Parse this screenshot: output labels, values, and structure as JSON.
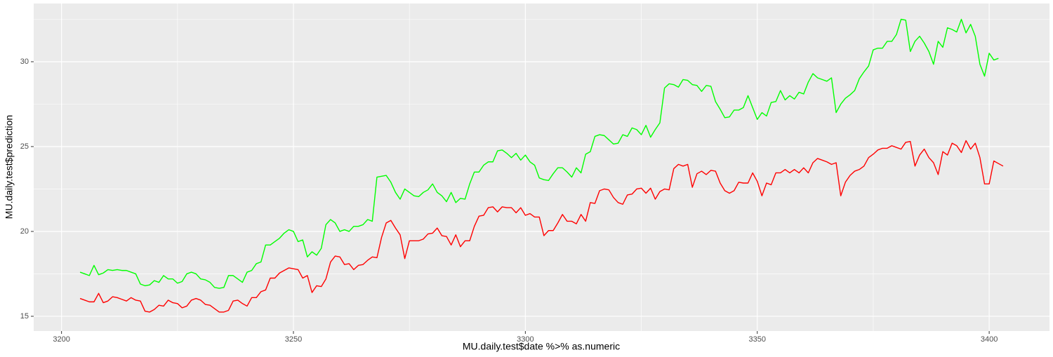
{
  "chart_data": {
    "type": "line",
    "x_label": "MU.daily.test$date %>% as.numeric",
    "y_label": "MU.daily.test$prediction",
    "x": [
      3204,
      3205,
      3206,
      3207,
      3208,
      3209,
      3210,
      3211,
      3212,
      3213,
      3214,
      3215,
      3216,
      3217,
      3218,
      3219,
      3220,
      3221,
      3222,
      3223,
      3224,
      3225,
      3226,
      3227,
      3228,
      3229,
      3230,
      3231,
      3232,
      3233,
      3234,
      3235,
      3236,
      3237,
      3238,
      3239,
      3240,
      3241,
      3242,
      3243,
      3244,
      3245,
      3246,
      3247,
      3248,
      3249,
      3250,
      3251,
      3252,
      3253,
      3254,
      3255,
      3256,
      3257,
      3258,
      3259,
      3260,
      3261,
      3262,
      3263,
      3264,
      3265,
      3266,
      3267,
      3268,
      3269,
      3270,
      3271,
      3272,
      3273,
      3274,
      3275,
      3276,
      3277,
      3278,
      3279,
      3280,
      3281,
      3282,
      3283,
      3284,
      3285,
      3286,
      3287,
      3288,
      3289,
      3290,
      3291,
      3292,
      3293,
      3294,
      3295,
      3296,
      3297,
      3298,
      3299,
      3300,
      3301,
      3302,
      3303,
      3304,
      3305,
      3306,
      3307,
      3308,
      3309,
      3310,
      3311,
      3312,
      3313,
      3314,
      3315,
      3316,
      3317,
      3318,
      3319,
      3320,
      3321,
      3322,
      3323,
      3324,
      3325,
      3326,
      3327,
      3328,
      3329,
      3330,
      3331,
      3332,
      3333,
      3334,
      3335,
      3336,
      3337,
      3338,
      3339,
      3340,
      3341,
      3342,
      3343,
      3344,
      3345,
      3346,
      3347,
      3348,
      3349,
      3350,
      3351,
      3352,
      3353,
      3354,
      3355,
      3356,
      3357,
      3358,
      3359,
      3360,
      3361,
      3362,
      3363,
      3364,
      3365,
      3366,
      3367,
      3368,
      3369,
      3370,
      3371,
      3372,
      3373,
      3374,
      3375,
      3376,
      3377,
      3378,
      3379,
      3380,
      3381,
      3382,
      3383,
      3384,
      3385,
      3386,
      3387,
      3388,
      3389,
      3390,
      3391,
      3392,
      3393,
      3394,
      3395,
      3396,
      3397,
      3398,
      3399,
      3400,
      3401,
      3402,
      3403
    ],
    "series": [
      {
        "color": "#00ff00",
        "values": [
          17.6,
          17.5,
          17.4,
          18.0,
          17.45,
          17.55,
          17.75,
          17.7,
          17.75,
          17.7,
          17.7,
          17.6,
          17.5,
          16.9,
          16.8,
          16.85,
          17.1,
          17.0,
          17.4,
          17.2,
          17.2,
          16.95,
          17.05,
          17.5,
          17.6,
          17.5,
          17.2,
          17.15,
          17.0,
          16.7,
          16.65,
          16.7,
          17.4,
          17.4,
          17.2,
          17.0,
          17.6,
          17.7,
          18.1,
          18.2,
          19.2,
          19.2,
          19.4,
          19.6,
          19.9,
          20.1,
          20.0,
          19.4,
          19.5,
          18.5,
          18.8,
          18.6,
          19.0,
          20.4,
          20.7,
          20.5,
          20.0,
          20.1,
          20.0,
          20.3,
          20.3,
          20.4,
          20.7,
          20.6,
          23.2,
          23.25,
          23.3,
          22.9,
          22.3,
          21.9,
          22.5,
          22.3,
          22.1,
          22.05,
          22.3,
          22.45,
          22.8,
          22.3,
          22.1,
          21.75,
          22.3,
          21.7,
          21.95,
          21.9,
          22.8,
          23.5,
          23.5,
          23.9,
          24.1,
          24.1,
          24.75,
          24.8,
          24.6,
          24.35,
          24.6,
          24.2,
          24.5,
          24.1,
          23.9,
          23.15,
          23.05,
          23.0,
          23.4,
          23.75,
          23.75,
          23.5,
          23.2,
          23.75,
          23.45,
          24.55,
          24.7,
          25.6,
          25.7,
          25.65,
          25.4,
          25.15,
          25.2,
          25.7,
          25.6,
          26.1,
          26.0,
          25.7,
          26.25,
          25.55,
          26.0,
          26.4,
          28.45,
          28.7,
          28.65,
          28.5,
          28.95,
          28.9,
          28.65,
          28.6,
          28.25,
          28.6,
          28.55,
          27.65,
          27.2,
          26.7,
          26.75,
          27.15,
          27.15,
          27.3,
          28.0,
          27.3,
          26.6,
          27.0,
          26.8,
          27.6,
          27.65,
          28.3,
          27.75,
          28.0,
          27.8,
          28.2,
          28.1,
          28.8,
          29.3,
          29.05,
          28.95,
          28.85,
          29.05,
          27.0,
          27.5,
          27.85,
          28.05,
          28.3,
          29.0,
          29.4,
          29.75,
          30.7,
          30.8,
          30.8,
          31.2,
          31.2,
          31.6,
          32.5,
          32.45,
          30.6,
          31.2,
          31.5,
          31.1,
          30.6,
          29.85,
          31.2,
          30.85,
          32.0,
          31.9,
          31.75,
          32.5,
          31.7,
          32.2,
          31.5,
          29.85,
          29.15,
          30.5,
          30.1,
          30.2,
          null
        ]
      },
      {
        "color": "#ff0000",
        "values": [
          16.05,
          15.95,
          15.85,
          15.85,
          16.35,
          15.8,
          15.9,
          16.15,
          16.1,
          16.0,
          15.9,
          16.1,
          15.95,
          15.9,
          15.3,
          15.25,
          15.4,
          15.65,
          15.6,
          15.95,
          15.8,
          15.75,
          15.5,
          15.6,
          15.95,
          16.05,
          15.95,
          15.7,
          15.65,
          15.45,
          15.25,
          15.25,
          15.35,
          15.9,
          15.95,
          15.75,
          15.6,
          16.1,
          16.1,
          16.45,
          16.55,
          17.25,
          17.25,
          17.55,
          17.7,
          17.85,
          17.8,
          17.75,
          17.25,
          17.4,
          16.4,
          16.8,
          16.75,
          17.2,
          18.2,
          18.55,
          18.5,
          18.05,
          18.1,
          17.75,
          18.0,
          18.05,
          18.3,
          18.5,
          18.45,
          19.65,
          20.5,
          20.65,
          20.2,
          19.8,
          18.4,
          19.45,
          19.45,
          19.45,
          19.55,
          19.85,
          19.9,
          20.2,
          19.75,
          19.7,
          19.2,
          19.8,
          19.1,
          19.45,
          19.45,
          20.3,
          20.9,
          20.95,
          21.4,
          21.45,
          21.15,
          21.45,
          21.4,
          21.4,
          21.1,
          21.4,
          20.95,
          21.05,
          20.85,
          20.85,
          19.75,
          20.05,
          20.05,
          20.5,
          21.0,
          20.6,
          20.6,
          20.45,
          21.0,
          20.6,
          21.7,
          21.65,
          22.4,
          22.5,
          22.45,
          22.0,
          21.7,
          21.6,
          22.15,
          22.2,
          22.5,
          22.55,
          22.25,
          22.55,
          21.9,
          22.35,
          22.5,
          22.45,
          23.7,
          23.95,
          23.85,
          23.95,
          22.6,
          23.4,
          23.55,
          23.35,
          23.6,
          23.55,
          22.85,
          22.4,
          22.25,
          22.4,
          22.9,
          22.85,
          22.85,
          23.45,
          22.95,
          22.1,
          22.85,
          22.75,
          23.45,
          23.45,
          23.65,
          23.45,
          23.65,
          23.45,
          23.75,
          23.45,
          24.05,
          24.3,
          24.2,
          24.1,
          23.95,
          24.05,
          22.1,
          22.9,
          23.3,
          23.55,
          23.65,
          23.85,
          24.35,
          24.55,
          24.8,
          24.9,
          24.9,
          25.05,
          24.95,
          24.85,
          25.25,
          25.3,
          23.85,
          24.5,
          24.85,
          24.35,
          24.05,
          23.35,
          24.7,
          24.5,
          25.2,
          25.05,
          24.65,
          25.35,
          24.85,
          25.2,
          24.35,
          22.8,
          22.8,
          24.15,
          24.0,
          23.85
        ]
      }
    ],
    "xlim": [
      3194,
      3413
    ],
    "ylim": [
      14.13,
      33.43
    ],
    "xticks": [
      3200,
      3250,
      3300,
      3350,
      3400
    ],
    "yticks": [
      15,
      20,
      25,
      30
    ],
    "x_minor_ticks": [
      3225,
      3275,
      3325,
      3375
    ],
    "y_minor_ticks": [
      17.5,
      22.5,
      27.5,
      32.5
    ],
    "grid": true
  }
}
